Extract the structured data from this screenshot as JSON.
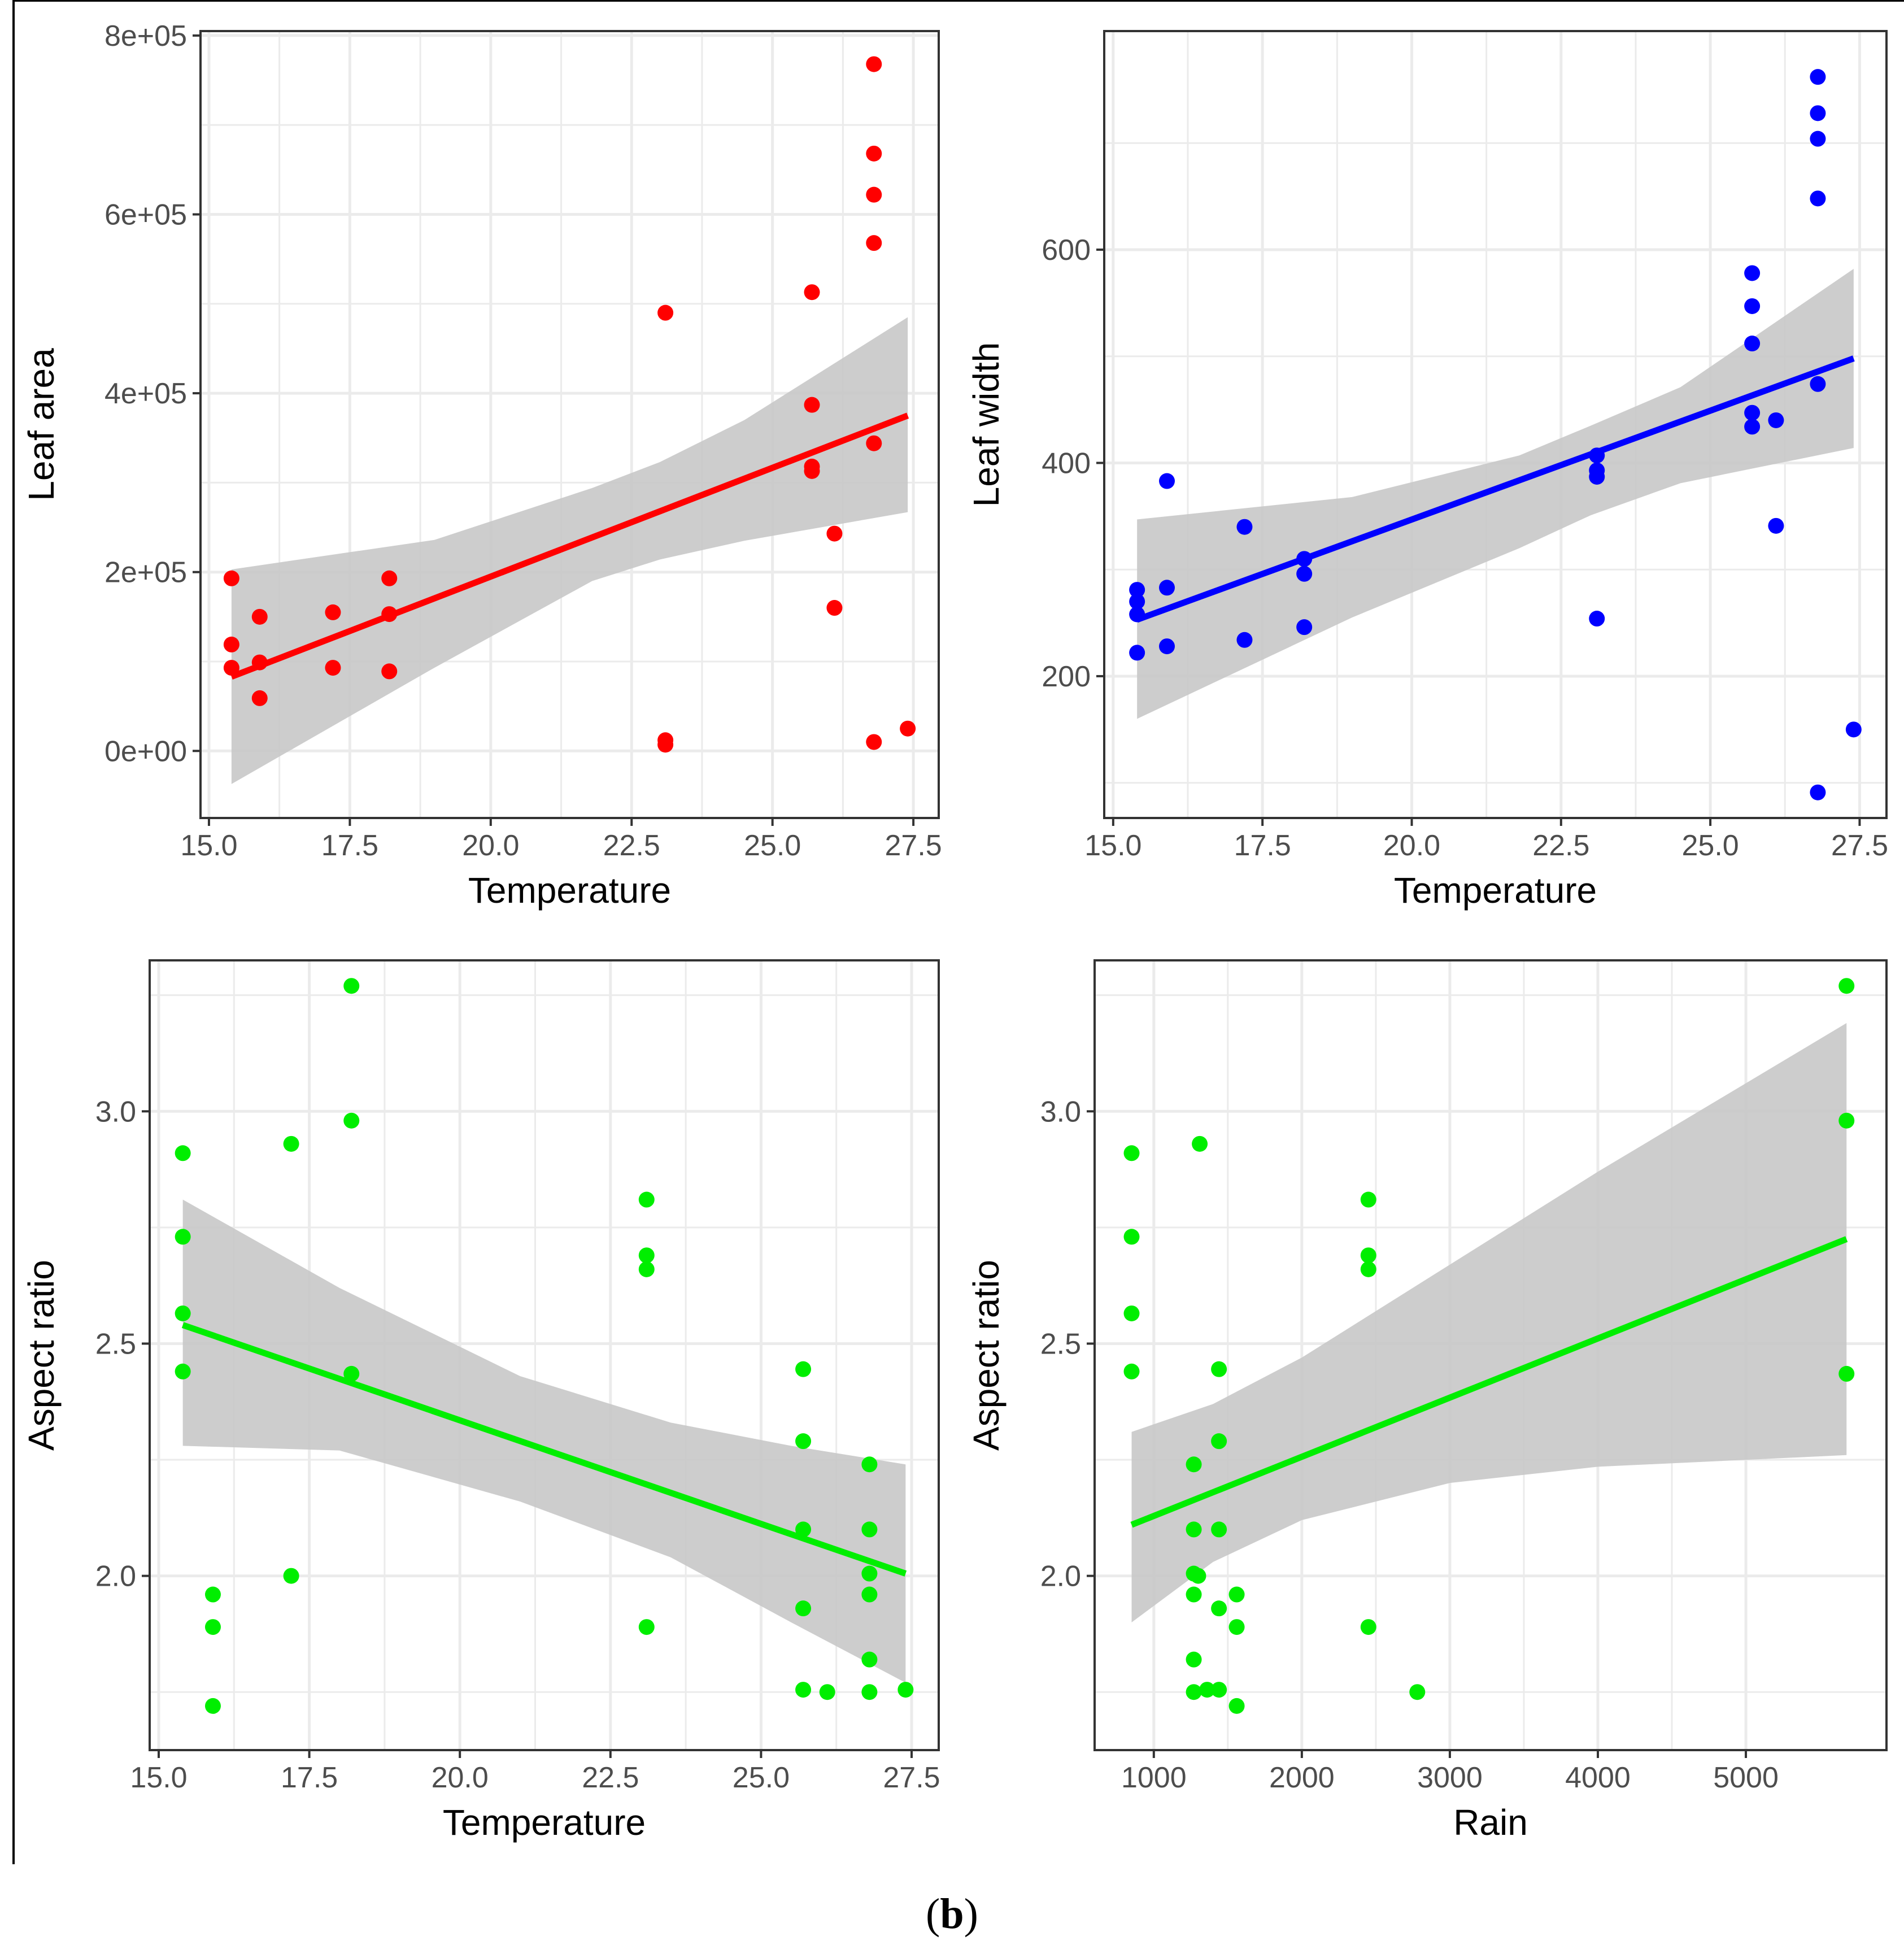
{
  "caption": {
    "open": "(",
    "letter": "b",
    "close": ")"
  },
  "colors": {
    "red": "#ff0000",
    "blue": "#0000ff",
    "green": "#00ee00",
    "band": "#c8c8c8",
    "grid": "#ebebeb"
  },
  "chart_data": [
    {
      "id": "p1",
      "type": "scatter",
      "title": "",
      "xlabel": "Temperature",
      "ylabel": "Leaf area",
      "xlim": [
        14.85,
        27.95
      ],
      "ylim": [
        -75000,
        805000
      ],
      "x_ticks": [
        15,
        17.5,
        20,
        22.5,
        25,
        27.5
      ],
      "x_tick_labels": [
        "15.0",
        "17.5",
        "20.0",
        "22.5",
        "25.0",
        "27.5"
      ],
      "y_ticks": [
        0,
        200000,
        400000,
        600000,
        800000
      ],
      "y_tick_labels": [
        "0e+00",
        "2e+05",
        "4e+05",
        "6e+05",
        "8e+05"
      ],
      "color": "#ff0000",
      "points": [
        [
          15.4,
          193000
        ],
        [
          15.4,
          119000
        ],
        [
          15.4,
          93000
        ],
        [
          15.9,
          150000
        ],
        [
          15.9,
          99000
        ],
        [
          15.9,
          59000
        ],
        [
          17.2,
          155000
        ],
        [
          17.2,
          93000
        ],
        [
          18.2,
          193000
        ],
        [
          18.2,
          153000
        ],
        [
          18.2,
          89000
        ],
        [
          23.1,
          490000
        ],
        [
          23.1,
          12000
        ],
        [
          23.1,
          7000
        ],
        [
          25.7,
          513000
        ],
        [
          25.7,
          387000
        ],
        [
          25.7,
          318000
        ],
        [
          25.7,
          313000
        ],
        [
          26.1,
          243000
        ],
        [
          26.1,
          160000
        ],
        [
          26.8,
          768000
        ],
        [
          26.8,
          668000
        ],
        [
          26.8,
          622000
        ],
        [
          26.8,
          568000
        ],
        [
          26.8,
          344000
        ],
        [
          26.8,
          10000
        ],
        [
          27.4,
          25000
        ]
      ],
      "fit": {
        "x": [
          15.4,
          27.4
        ],
        "y": [
          83000,
          375000
        ]
      },
      "band": {
        "x": [
          15.4,
          19.0,
          21.8,
          23.0,
          24.5,
          27.4
        ],
        "upper": [
          203000,
          236000,
          294000,
          323000,
          370000,
          485000
        ],
        "lower": [
          -37000,
          93000,
          190000,
          214000,
          235000,
          267000
        ]
      }
    },
    {
      "id": "p2",
      "type": "scatter",
      "title": "",
      "xlabel": "Temperature",
      "ylabel": "Leaf width",
      "xlim": [
        14.85,
        27.95
      ],
      "ylim": [
        67,
        805
      ],
      "x_ticks": [
        15,
        17.5,
        20,
        22.5,
        25,
        27.5
      ],
      "x_tick_labels": [
        "15.0",
        "17.5",
        "20.0",
        "22.5",
        "25.0",
        "27.5"
      ],
      "y_ticks": [
        200,
        400,
        600
      ],
      "y_tick_labels": [
        "200",
        "400",
        "600"
      ],
      "color": "#0000ff",
      "points": [
        [
          15.4,
          281
        ],
        [
          15.4,
          270
        ],
        [
          15.4,
          258
        ],
        [
          15.4,
          222
        ],
        [
          15.9,
          383
        ],
        [
          15.9,
          283
        ],
        [
          15.9,
          228
        ],
        [
          17.2,
          340
        ],
        [
          17.2,
          234
        ],
        [
          18.2,
          310
        ],
        [
          18.2,
          296
        ],
        [
          18.2,
          246
        ],
        [
          23.1,
          407
        ],
        [
          23.1,
          393
        ],
        [
          23.1,
          387
        ],
        [
          23.1,
          254
        ],
        [
          25.7,
          578
        ],
        [
          25.7,
          547
        ],
        [
          25.7,
          512
        ],
        [
          25.7,
          447
        ],
        [
          25.7,
          434
        ],
        [
          26.1,
          440
        ],
        [
          26.1,
          341
        ],
        [
          26.8,
          762
        ],
        [
          26.8,
          728
        ],
        [
          26.8,
          704
        ],
        [
          26.8,
          648
        ],
        [
          26.8,
          474
        ],
        [
          26.8,
          91
        ],
        [
          27.4,
          150
        ]
      ],
      "fit": {
        "x": [
          15.4,
          27.4
        ],
        "y": [
          253,
          498
        ]
      },
      "band": {
        "x": [
          15.4,
          19.0,
          21.8,
          23.0,
          24.5,
          27.4
        ],
        "upper": [
          347,
          368,
          407,
          435,
          471,
          582
        ],
        "lower": [
          160,
          255,
          320,
          351,
          381,
          414
        ]
      }
    },
    {
      "id": "p3",
      "type": "scatter",
      "title": "",
      "xlabel": "Temperature",
      "ylabel": "Aspect ratio",
      "xlim": [
        14.85,
        27.95
      ],
      "ylim": [
        1.625,
        3.325
      ],
      "x_ticks": [
        15,
        17.5,
        20,
        22.5,
        25,
        27.5
      ],
      "x_tick_labels": [
        "15.0",
        "17.5",
        "20.0",
        "22.5",
        "25.0",
        "27.5"
      ],
      "y_ticks": [
        2.0,
        2.5,
        3.0
      ],
      "y_tick_labels": [
        "2.0",
        "2.5",
        "3.0"
      ],
      "color": "#00ee00",
      "points": [
        [
          15.4,
          2.91
        ],
        [
          15.4,
          2.73
        ],
        [
          15.4,
          2.565
        ],
        [
          15.4,
          2.44
        ],
        [
          15.9,
          1.96
        ],
        [
          15.9,
          1.89
        ],
        [
          15.9,
          1.72
        ],
        [
          17.2,
          2.93
        ],
        [
          17.2,
          2.0
        ],
        [
          18.2,
          3.27
        ],
        [
          18.2,
          2.98
        ],
        [
          18.2,
          2.435
        ],
        [
          23.1,
          2.81
        ],
        [
          23.1,
          2.69
        ],
        [
          23.1,
          2.66
        ],
        [
          23.1,
          1.89
        ],
        [
          25.7,
          2.445
        ],
        [
          25.7,
          2.29
        ],
        [
          25.7,
          2.1
        ],
        [
          25.7,
          1.93
        ],
        [
          25.7,
          1.755
        ],
        [
          26.1,
          1.75
        ],
        [
          26.8,
          2.24
        ],
        [
          26.8,
          2.1
        ],
        [
          26.8,
          2.005
        ],
        [
          26.8,
          1.96
        ],
        [
          26.8,
          1.82
        ],
        [
          26.8,
          1.75
        ],
        [
          27.4,
          1.755
        ]
      ],
      "fit": {
        "x": [
          15.4,
          27.4
        ],
        "y": [
          2.54,
          2.005
        ]
      },
      "band": {
        "x": [
          15.4,
          18.0,
          21.0,
          23.5,
          25.5,
          27.4
        ],
        "upper": [
          2.81,
          2.62,
          2.43,
          2.33,
          2.28,
          2.24
        ],
        "lower": [
          2.28,
          2.27,
          2.16,
          2.04,
          1.9,
          1.77
        ]
      }
    },
    {
      "id": "p4",
      "type": "scatter",
      "title": "",
      "xlabel": "Rain",
      "ylabel": "Aspect ratio",
      "xlim": [
        600,
        5950
      ],
      "ylim": [
        1.625,
        3.325
      ],
      "x_ticks": [
        1000,
        2000,
        3000,
        4000,
        5000
      ],
      "x_tick_labels": [
        "1000",
        "2000",
        "3000",
        "4000",
        "5000"
      ],
      "y_ticks": [
        2.0,
        2.5,
        3.0
      ],
      "y_tick_labels": [
        "2.0",
        "2.5",
        "3.0"
      ],
      "color": "#00ee00",
      "points": [
        [
          850,
          2.91
        ],
        [
          850,
          2.73
        ],
        [
          850,
          2.565
        ],
        [
          850,
          2.44
        ],
        [
          1270,
          2.24
        ],
        [
          1270,
          2.1
        ],
        [
          1270,
          2.005
        ],
        [
          1270,
          1.96
        ],
        [
          1270,
          1.82
        ],
        [
          1270,
          1.75
        ],
        [
          1300,
          2.0
        ],
        [
          1310,
          2.93
        ],
        [
          1360,
          1.755
        ],
        [
          1440,
          2.445
        ],
        [
          1440,
          2.29
        ],
        [
          1440,
          2.1
        ],
        [
          1440,
          1.93
        ],
        [
          1440,
          1.755
        ],
        [
          1560,
          1.96
        ],
        [
          1560,
          1.89
        ],
        [
          1560,
          1.72
        ],
        [
          2450,
          2.81
        ],
        [
          2450,
          2.69
        ],
        [
          2450,
          2.66
        ],
        [
          2450,
          1.89
        ],
        [
          2780,
          1.75
        ],
        [
          5680,
          3.27
        ],
        [
          5680,
          2.98
        ],
        [
          5680,
          2.435
        ]
      ],
      "fit": {
        "x": [
          850,
          5680
        ],
        "y": [
          2.11,
          2.725
        ]
      },
      "band": {
        "x": [
          850,
          1400,
          2000,
          3000,
          4000,
          5680
        ],
        "upper": [
          2.31,
          2.37,
          2.47,
          2.67,
          2.87,
          3.19
        ],
        "lower": [
          1.9,
          2.03,
          2.12,
          2.2,
          2.235,
          2.26
        ]
      }
    }
  ]
}
